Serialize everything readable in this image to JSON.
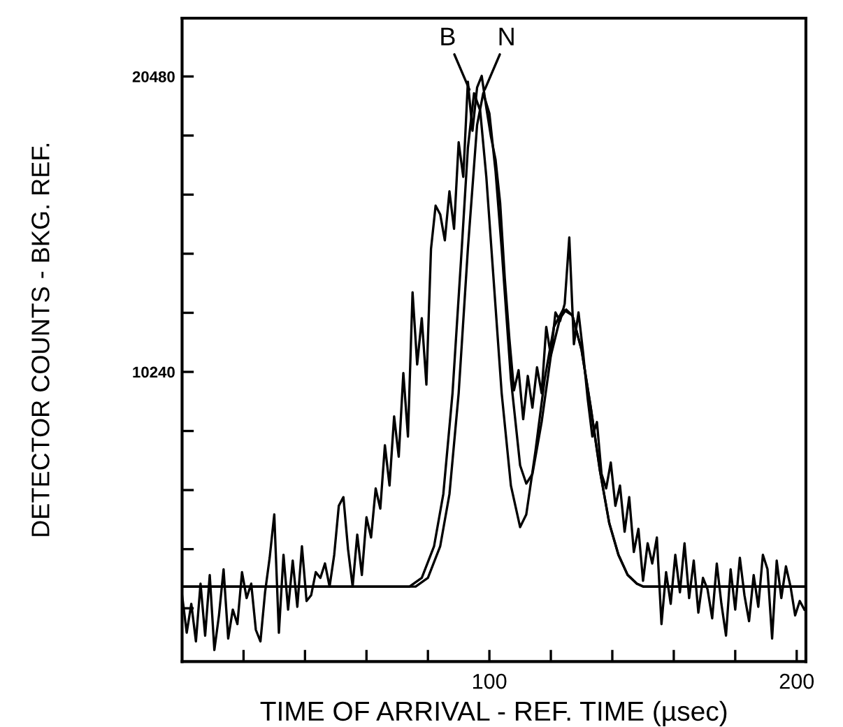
{
  "chart_data": {
    "type": "line",
    "xlabel": "TIME OF ARRIVAL - REF. TIME (µsec)",
    "ylabel": "DETECTOR COUNTS - BKG. REF.",
    "xlim": [
      0,
      203
    ],
    "ylim": [
      200,
      22500
    ],
    "xticks": [
      {
        "value": 20,
        "label": null
      },
      {
        "value": 40,
        "label": null
      },
      {
        "value": 60,
        "label": null
      },
      {
        "value": 80,
        "label": null
      },
      100,
      {
        "value": 120,
        "label": null
      },
      {
        "value": 140,
        "label": null
      },
      {
        "value": 160,
        "label": null
      },
      {
        "value": 180,
        "label": null
      },
      200
    ],
    "yticks": [
      {
        "value": 2048,
        "label": null
      },
      {
        "value": 4096,
        "label": null
      },
      {
        "value": 6144,
        "label": null
      },
      {
        "value": 8192,
        "label": null
      },
      10240,
      {
        "value": 12288,
        "label": null
      },
      {
        "value": 14336,
        "label": null
      },
      {
        "value": 16384,
        "label": null
      },
      {
        "value": 18432,
        "label": null
      },
      20480
    ],
    "grid": false,
    "legend": false,
    "marker": "none",
    "line_style": "solid",
    "annotations": [
      {
        "text": "B",
        "x": 94,
        "y": 19900
      },
      {
        "text": "N",
        "x": 98,
        "y": 19900
      }
    ],
    "series": [
      {
        "color": "#000000",
        "x": [
          0,
          1.5,
          3,
          4.5,
          6,
          7.5,
          9,
          10.5,
          12,
          13.5,
          15,
          16.5,
          18,
          19.5,
          21,
          22.5,
          24,
          25.5,
          27,
          28.5,
          30,
          31.5,
          33,
          34.5,
          36,
          37.5,
          39,
          40.5,
          42,
          43.5,
          45,
          46.5,
          48,
          49.5,
          51,
          52.5,
          54,
          55.5,
          57,
          58.5,
          60,
          61.5,
          63,
          64.5,
          66,
          67.5,
          69,
          70.5,
          72,
          73.5,
          75,
          76.5,
          78,
          79.5,
          81,
          82.5,
          84,
          85.5,
          87,
          88.5,
          90,
          91.5,
          93,
          94.5,
          96,
          97.5,
          99,
          100.5,
          102,
          103.5,
          105,
          106.5,
          108,
          109.5,
          111,
          112.5,
          114,
          115.5,
          117,
          118.5,
          120,
          121.5,
          123,
          124.5,
          126,
          127.5,
          129,
          130.5,
          132,
          133.5,
          135,
          136.5,
          138,
          139.5,
          141,
          142.5,
          144,
          145.5,
          147,
          148.5,
          150,
          151.5,
          153,
          154.5,
          156,
          157.5,
          159,
          160.5,
          162,
          163.5,
          165,
          166.5,
          168,
          169.5,
          171,
          172.5,
          174,
          175.5,
          177,
          178.5,
          180,
          181.5,
          183,
          184.5,
          186,
          187.5,
          189,
          190.5,
          192,
          193.5,
          195,
          196.5,
          198,
          199.5,
          201,
          202.5
        ],
        "values": [
          2500,
          1200,
          2200,
          900,
          2900,
          1100,
          3200,
          600,
          1800,
          3400,
          1000,
          2000,
          1500,
          3300,
          2400,
          2900,
          1300,
          900,
          2600,
          3800,
          5300,
          1200,
          3900,
          2000,
          3700,
          2100,
          4200,
          2300,
          2500,
          3300,
          3100,
          3600,
          2800,
          3900,
          5600,
          5900,
          4100,
          2800,
          4600,
          3200,
          5200,
          4500,
          6200,
          5500,
          7700,
          6300,
          8700,
          7300,
          10200,
          8000,
          13000,
          10500,
          12100,
          9800,
          14500,
          16000,
          15700,
          14800,
          16500,
          15200,
          18200,
          17000,
          20300,
          18600,
          20100,
          20500,
          19400,
          18400,
          17600,
          16100,
          13500,
          11400,
          9600,
          10300,
          8600,
          10100,
          9000,
          10400,
          9500,
          11800,
          10800,
          12300,
          12000,
          12600,
          14900,
          11200,
          12300,
          10900,
          9300,
          8000,
          8500,
          6700,
          6200,
          7100,
          5600,
          6300,
          4700,
          5900,
          4000,
          4800,
          3000,
          4300,
          3600,
          4500,
          1500,
          3300,
          2200,
          3900,
          2600,
          4300,
          2400,
          3700,
          1900,
          3100,
          2700,
          1700,
          3600,
          2200,
          1100,
          3400,
          2000,
          3800,
          2500,
          1600,
          3200,
          2100,
          3900,
          3400,
          1000,
          3700,
          2400,
          3500,
          2800,
          1800,
          2300,
          2000
        ]
      },
      {
        "color": "#000000",
        "x": [
          0,
          74,
          78,
          82,
          85,
          88,
          91,
          93,
          95,
          97,
          99,
          101,
          104,
          107,
          110,
          112,
          115,
          118,
          121,
          124,
          127,
          130,
          133,
          136,
          139,
          142,
          145,
          148,
          150,
          203
        ],
        "values": [
          2800,
          2800,
          3100,
          4200,
          6000,
          9500,
          14500,
          18000,
          19900,
          19300,
          17000,
          14000,
          9500,
          6300,
          4860,
          5300,
          7500,
          10000,
          11800,
          12400,
          12200,
          11000,
          9000,
          6800,
          5000,
          3900,
          3200,
          2900,
          2800,
          2800
        ]
      },
      {
        "color": "#000000",
        "x": [
          0,
          76,
          80,
          84,
          87,
          90,
          93,
          96,
          98,
          100,
          102,
          104,
          107,
          110,
          112,
          114,
          117,
          120,
          123,
          125,
          127,
          130,
          133,
          136,
          139,
          142,
          145,
          148,
          150,
          203
        ],
        "values": [
          2800,
          2800,
          3100,
          4200,
          6000,
          9500,
          14500,
          18800,
          19900,
          19200,
          17200,
          14500,
          10000,
          7000,
          6370,
          6700,
          8500,
          10800,
          12100,
          12400,
          12200,
          11000,
          9000,
          6800,
          5000,
          3900,
          3200,
          2900,
          2800,
          2800
        ]
      }
    ]
  }
}
